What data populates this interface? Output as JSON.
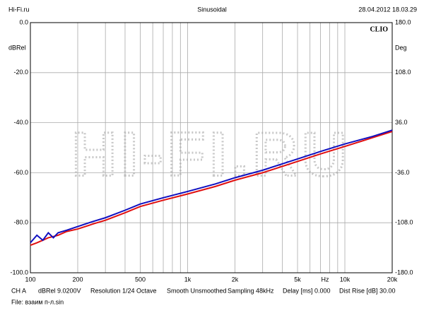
{
  "chart_data": {
    "type": "line",
    "header": [
      "Hi-Fi.ru",
      "Sinusoidal",
      "28.04.2012 18.03.29"
    ],
    "brand": "CLIO",
    "watermark": "HI-FI.RU",
    "ylabel": "dBRel",
    "y2label": "Deg",
    "xlabel": "Hz",
    "x": [
      100,
      110,
      120,
      130,
      140,
      150,
      170,
      200,
      250,
      300,
      400,
      500,
      700,
      1000,
      1500,
      2000,
      3000,
      5000,
      7000,
      10000,
      15000,
      20000
    ],
    "series": [
      {
        "color": "#1010c0",
        "values": [
          -88,
          -85,
          -87,
          -84,
          -86,
          -84,
          -83,
          -81.5,
          -79.5,
          -78,
          -75,
          -72.5,
          -70,
          -67.5,
          -64.5,
          -62,
          -59,
          -54.5,
          -51.5,
          -48.5,
          -45.5,
          -43
        ]
      },
      {
        "color": "#e01010",
        "values": [
          -89,
          -88,
          -87,
          -86,
          -85.5,
          -85,
          -83.5,
          -82.5,
          -80.5,
          -79,
          -76,
          -73.5,
          -71,
          -68.5,
          -65.5,
          -63,
          -60,
          -55.5,
          -52.5,
          -49.5,
          -46,
          -43.5
        ]
      }
    ],
    "xscale": "log",
    "xlim": [
      100,
      20000
    ],
    "xticks": [
      100,
      200,
      500,
      {
        "value": 1000,
        "label": "1k"
      },
      {
        "value": 2000,
        "label": "2k"
      },
      {
        "value": 5000,
        "label": "5k"
      },
      {
        "value": 10000,
        "label": "10k"
      },
      {
        "value": 20000,
        "label": "20k"
      }
    ],
    "xgrid": [
      100,
      200,
      300,
      400,
      500,
      600,
      700,
      800,
      900,
      1000,
      2000,
      3000,
      4000,
      5000,
      6000,
      7000,
      8000,
      9000,
      10000,
      20000
    ],
    "ylim": [
      -100,
      0
    ],
    "yticks": [
      {
        "value": 0,
        "label": "0.0"
      },
      {
        "value": -20,
        "label": "-20.0"
      },
      {
        "value": -40,
        "label": "-40.0"
      },
      {
        "value": -60,
        "label": "-60.0"
      },
      {
        "value": -80,
        "label": "-80.0"
      },
      {
        "value": -100,
        "label": "-100.0"
      }
    ],
    "y2lim": [
      -180,
      180
    ],
    "y2ticks": [
      {
        "value": 180,
        "label": "180.0"
      },
      {
        "value": 108,
        "label": "108.0"
      },
      {
        "value": 36,
        "label": "36.0"
      },
      {
        "value": -36,
        "label": "-36.0"
      },
      {
        "value": -108,
        "label": "-108.0"
      },
      {
        "value": -180,
        "label": "-180.0"
      }
    ],
    "grid": true,
    "footer": [
      "CH A",
      "dBRel 9.0200V",
      "Resolution 1/24 Octave",
      "Smooth Unsmoothed",
      "Sampling 48kHz",
      "Delay [ms] 0.000",
      "Dist Rise [dB] 30.00"
    ],
    "file": "File: взаим п-л.sin"
  }
}
